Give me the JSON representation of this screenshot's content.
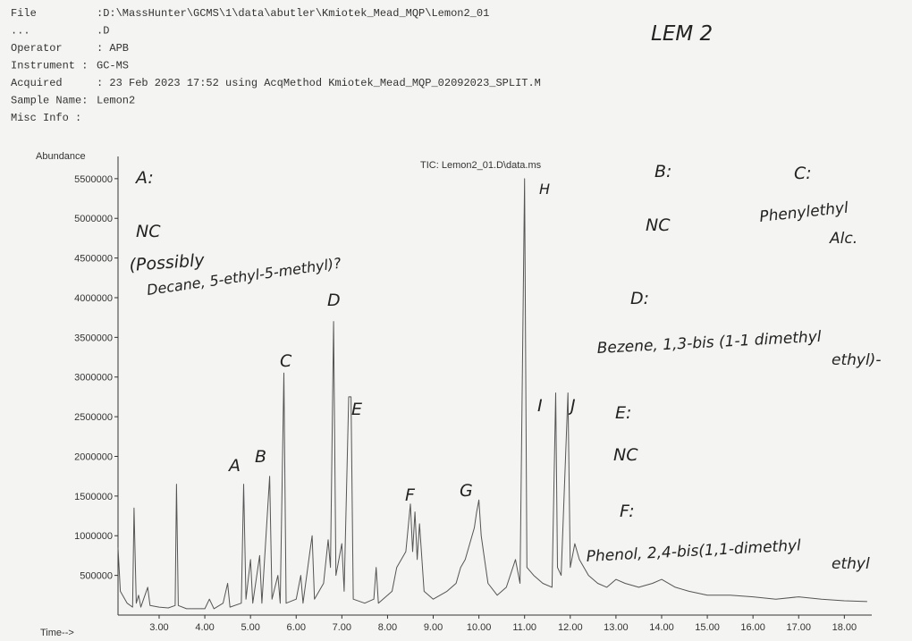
{
  "header": {
    "rows": [
      [
        "File",
        ":D:\\MassHunter\\GCMS\\1\\data\\abutler\\Kmiotek_Mead_MQP\\Lemon2_01"
      ],
      [
        "...",
        ".D"
      ],
      [
        "Operator",
        ": APB"
      ],
      [
        "Instrument :",
        "GC-MS"
      ],
      [
        "Acquired",
        ": 23 Feb 2023  17:52     using AcqMethod Kmiotek_Mead_MQP_02092023_SPLIT.M"
      ],
      [
        "Sample Name:",
        "Lemon2"
      ],
      [
        "Misc Info  :",
        ""
      ]
    ]
  },
  "annotations": [
    "LEM 2",
    "A:",
    "NC",
    "(Possibly",
    "Decane, 5-ethyl-5-methyl)?",
    "B:",
    "NC",
    "C:",
    "Phenylethyl",
    "Alc.",
    "D:",
    "Bezene, 1,3-bis (1-1 dimethyl",
    "ethyl)-",
    "E:",
    "NC",
    "F:",
    "Phenol, 2,4-bis(1,1-dimethyl",
    "ethyl"
  ],
  "peak_labels": [
    "A",
    "B",
    "C",
    "D",
    "E",
    "F",
    "G",
    "H",
    "I",
    "J"
  ],
  "chart_data": {
    "type": "line",
    "title": "TIC: Lemon2_01.D\\data.ms",
    "ylabel": "Abundance",
    "xlabel": "Time-->",
    "color": "#555555",
    "xlim": [
      2.1,
      18.6
    ],
    "ylim": [
      0,
      5780000
    ],
    "xticks": [
      {
        "value": 3,
        "label": "3.00"
      },
      {
        "value": 4,
        "label": "4.00"
      },
      {
        "value": 5,
        "label": "5.00"
      },
      {
        "value": 6,
        "label": "6.00"
      },
      {
        "value": 7,
        "label": "7.00"
      },
      {
        "value": 8,
        "label": "8.00"
      },
      {
        "value": 9,
        "label": "9.00"
      },
      {
        "value": 10,
        "label": "10.00"
      },
      {
        "value": 11,
        "label": "11.00"
      },
      {
        "value": 12,
        "label": "12.00"
      },
      {
        "value": 13,
        "label": "13.00"
      },
      {
        "value": 14,
        "label": "14.00"
      },
      {
        "value": 15,
        "label": "15.00"
      },
      {
        "value": 16,
        "label": "16.00"
      },
      {
        "value": 17,
        "label": "17.00"
      },
      {
        "value": 18,
        "label": "18.00"
      }
    ],
    "yticks": [
      500000,
      1000000,
      1500000,
      2000000,
      2500000,
      3000000,
      3500000,
      4000000,
      4500000,
      5000000,
      5500000
    ],
    "x": [
      2.1,
      2.15,
      2.3,
      2.42,
      2.45,
      2.5,
      2.55,
      2.6,
      2.75,
      2.8,
      3.0,
      3.2,
      3.35,
      3.38,
      3.42,
      3.6,
      4.0,
      4.1,
      4.2,
      4.4,
      4.5,
      4.55,
      4.8,
      4.85,
      4.9,
      5.0,
      5.05,
      5.2,
      5.25,
      5.42,
      5.47,
      5.6,
      5.65,
      5.73,
      5.78,
      6.0,
      6.1,
      6.15,
      6.3,
      6.35,
      6.4,
      6.6,
      6.7,
      6.75,
      6.82,
      6.87,
      7.0,
      7.05,
      7.15,
      7.2,
      7.25,
      7.5,
      7.7,
      7.75,
      7.8,
      8.1,
      8.2,
      8.3,
      8.4,
      8.5,
      8.55,
      8.6,
      8.65,
      8.7,
      8.8,
      9.0,
      9.3,
      9.5,
      9.6,
      9.7,
      9.8,
      9.9,
      9.95,
      10.0,
      10.05,
      10.1,
      10.2,
      10.4,
      10.6,
      10.8,
      10.9,
      11.0,
      11.05,
      11.2,
      11.4,
      11.6,
      11.68,
      11.72,
      11.8,
      11.95,
      12.0,
      12.1,
      12.2,
      12.4,
      12.6,
      12.8,
      13.0,
      13.2,
      13.5,
      13.8,
      14.0,
      14.3,
      14.6,
      15.0,
      15.5,
      16.0,
      16.5,
      17.0,
      17.5,
      18.0,
      18.5
    ],
    "values": [
      850000,
      300000,
      150000,
      100000,
      1350000,
      150000,
      250000,
      100000,
      350000,
      120000,
      100000,
      90000,
      120000,
      1650000,
      120000,
      80000,
      80000,
      200000,
      80000,
      150000,
      400000,
      100000,
      150000,
      1650000,
      200000,
      700000,
      150000,
      750000,
      150000,
      1750000,
      200000,
      500000,
      150000,
      3050000,
      150000,
      200000,
      500000,
      150000,
      800000,
      1000000,
      200000,
      400000,
      950000,
      600000,
      3700000,
      500000,
      900000,
      300000,
      2750000,
      2750000,
      200000,
      150000,
      200000,
      600000,
      150000,
      300000,
      600000,
      700000,
      800000,
      1400000,
      800000,
      1300000,
      700000,
      1150000,
      300000,
      200000,
      300000,
      400000,
      600000,
      700000,
      900000,
      1100000,
      1300000,
      1450000,
      1000000,
      800000,
      400000,
      250000,
      350000,
      700000,
      400000,
      5500000,
      600000,
      500000,
      400000,
      350000,
      2800000,
      600000,
      500000,
      2800000,
      600000,
      900000,
      700000,
      500000,
      400000,
      350000,
      450000,
      400000,
      350000,
      400000,
      450000,
      350000,
      300000,
      250000,
      250000,
      230000,
      200000,
      230000,
      200000,
      180000,
      170000
    ]
  }
}
